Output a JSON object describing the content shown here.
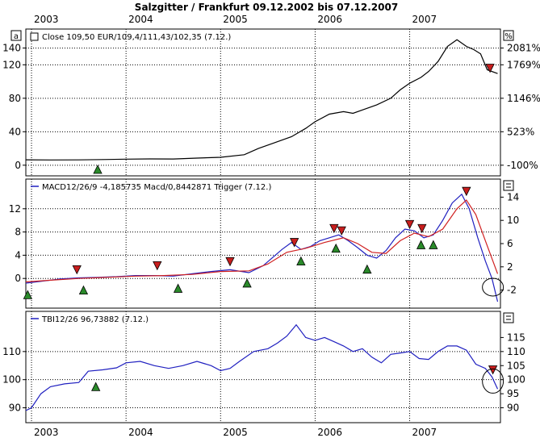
{
  "chart_data": {
    "title": "Salzgitter / Frankfurt 09.12.2002 bis 07.12.2007",
    "x_axis": {
      "year_labels": [
        "2003",
        "2004",
        "2005",
        "2006",
        "2007"
      ]
    },
    "panels": [
      {
        "type": "line",
        "corner_label": "a",
        "corner_right_label": "%",
        "legend": "Close 109,50 EUR/109,4/111,43/102,35 (7.12.)",
        "ylim": [
          -5,
          155
        ],
        "y_ticks_left": [
          "140",
          "120",
          "80",
          "40",
          "0"
        ],
        "y_ticks_left_values": [
          140,
          120,
          80,
          40,
          0
        ],
        "y_ticks_right": [
          "2081%",
          "1769%",
          "1146%",
          "523%",
          "-100%"
        ],
        "y_ticks_right_values": [
          140,
          120,
          80,
          40,
          0
        ],
        "series": [
          {
            "name": "Close",
            "color": "#000000",
            "points": [
              [
                2002.94,
                6.5
              ],
              [
                2003.2,
                6.3
              ],
              [
                2003.5,
                6.4
              ],
              [
                2003.75,
                6.8
              ],
              [
                2004.0,
                7.2
              ],
              [
                2004.25,
                7.5
              ],
              [
                2004.5,
                7.4
              ],
              [
                2004.75,
                8.5
              ],
              [
                2005.0,
                9.5
              ],
              [
                2005.25,
                12.5
              ],
              [
                2005.4,
                20
              ],
              [
                2005.55,
                26
              ],
              [
                2005.75,
                34
              ],
              [
                2005.9,
                44
              ],
              [
                2006.0,
                52
              ],
              [
                2006.15,
                61
              ],
              [
                2006.3,
                64
              ],
              [
                2006.4,
                62
              ],
              [
                2006.5,
                66
              ],
              [
                2006.65,
                72
              ],
              [
                2006.8,
                80
              ],
              [
                2006.9,
                90
              ],
              [
                2007.0,
                98
              ],
              [
                2007.12,
                105
              ],
              [
                2007.2,
                112
              ],
              [
                2007.3,
                124
              ],
              [
                2007.4,
                142
              ],
              [
                2007.5,
                150
              ],
              [
                2007.6,
                142
              ],
              [
                2007.68,
                138
              ],
              [
                2007.75,
                133
              ],
              [
                2007.82,
                114
              ],
              [
                2007.93,
                109.5
              ]
            ]
          }
        ],
        "buy_markers": [
          [
            2003.7,
            -5
          ]
        ],
        "sell_markers": [
          [
            2007.85,
            116
          ]
        ]
      },
      {
        "type": "line",
        "legend": "MACD12/26/9 -4,185735 Macd/0,8442871 Trigger (7.12.)",
        "ylim": [
          -4,
          16
        ],
        "y_ticks_left": [
          "12",
          "8",
          "4",
          "0"
        ],
        "y_ticks_left_values": [
          12,
          8,
          4,
          0
        ],
        "y_ticks_right": [
          "14",
          "10",
          "6",
          "2",
          "-2"
        ],
        "y_ticks_right_values": [
          14,
          10,
          6,
          2,
          -2
        ],
        "series": [
          {
            "name": "Macd",
            "color": "#2020c0",
            "points": [
              [
                2002.94,
                -0.8
              ],
              [
                2003.1,
                -0.5
              ],
              [
                2003.3,
                -0.1
              ],
              [
                2003.5,
                0.1
              ],
              [
                2003.7,
                0.2
              ],
              [
                2003.9,
                0.3
              ],
              [
                2004.1,
                0.5
              ],
              [
                2004.3,
                0.5
              ],
              [
                2004.5,
                0.4
              ],
              [
                2004.7,
                0.8
              ],
              [
                2004.9,
                1.2
              ],
              [
                2005.1,
                1.5
              ],
              [
                2005.3,
                1.0
              ],
              [
                2005.45,
                2.2
              ],
              [
                2005.55,
                3.6
              ],
              [
                2005.65,
                5.0
              ],
              [
                2005.75,
                6.2
              ],
              [
                2005.85,
                5.0
              ],
              [
                2005.95,
                5.5
              ],
              [
                2006.05,
                6.5
              ],
              [
                2006.15,
                7.0
              ],
              [
                2006.25,
                7.5
              ],
              [
                2006.35,
                6.5
              ],
              [
                2006.45,
                5.3
              ],
              [
                2006.55,
                4.0
              ],
              [
                2006.65,
                3.5
              ],
              [
                2006.75,
                4.8
              ],
              [
                2006.85,
                7.0
              ],
              [
                2006.95,
                8.5
              ],
              [
                2007.05,
                8.2
              ],
              [
                2007.15,
                7.0
              ],
              [
                2007.25,
                7.5
              ],
              [
                2007.35,
                10.0
              ],
              [
                2007.45,
                13.0
              ],
              [
                2007.55,
                14.5
              ],
              [
                2007.63,
                12.0
              ],
              [
                2007.72,
                7.0
              ],
              [
                2007.8,
                3.0
              ],
              [
                2007.87,
                0.0
              ],
              [
                2007.93,
                -4.0
              ]
            ]
          },
          {
            "name": "Trigger",
            "color": "#d02020",
            "points": [
              [
                2002.94,
                -0.6
              ],
              [
                2003.2,
                -0.3
              ],
              [
                2003.5,
                0.0
              ],
              [
                2003.8,
                0.2
              ],
              [
                2004.1,
                0.4
              ],
              [
                2004.4,
                0.5
              ],
              [
                2004.7,
                0.7
              ],
              [
                2005.0,
                1.2
              ],
              [
                2005.3,
                1.3
              ],
              [
                2005.5,
                2.5
              ],
              [
                2005.7,
                4.5
              ],
              [
                2005.9,
                5.2
              ],
              [
                2006.1,
                6.2
              ],
              [
                2006.3,
                7.0
              ],
              [
                2006.45,
                6.0
              ],
              [
                2006.6,
                4.5
              ],
              [
                2006.75,
                4.3
              ],
              [
                2006.9,
                6.5
              ],
              [
                2007.05,
                7.8
              ],
              [
                2007.2,
                7.2
              ],
              [
                2007.35,
                8.5
              ],
              [
                2007.5,
                12.0
              ],
              [
                2007.6,
                13.5
              ],
              [
                2007.7,
                11.0
              ],
              [
                2007.8,
                6.5
              ],
              [
                2007.93,
                0.8
              ]
            ]
          }
        ],
        "buy_markers": [
          [
            2002.96,
            -2.8
          ],
          [
            2003.55,
            -2.0
          ],
          [
            2004.55,
            -1.7
          ],
          [
            2005.28,
            -0.8
          ],
          [
            2005.85,
            3.0
          ],
          [
            2006.22,
            5.2
          ],
          [
            2006.55,
            1.6
          ],
          [
            2007.12,
            5.8
          ],
          [
            2007.25,
            5.8
          ]
        ],
        "sell_markers": [
          [
            2003.48,
            1.5
          ],
          [
            2004.33,
            2.2
          ],
          [
            2005.1,
            2.9
          ],
          [
            2005.78,
            6.2
          ],
          [
            2006.2,
            8.6
          ],
          [
            2006.28,
            8.2
          ],
          [
            2007.0,
            9.3
          ],
          [
            2007.13,
            8.6
          ],
          [
            2007.6,
            15.0
          ]
        ]
      },
      {
        "type": "line",
        "legend": "TBI12/26 96,73882 (7.12.)",
        "ylim": [
          87,
          122
        ],
        "y_ticks_left": [
          "110",
          "100",
          "90"
        ],
        "y_ticks_left_values": [
          110,
          100,
          90
        ],
        "y_ticks_right": [
          "115",
          "110",
          "105",
          "100",
          "95",
          "90"
        ],
        "y_ticks_right_values": [
          115,
          110,
          105,
          100,
          95,
          90
        ],
        "series": [
          {
            "name": "TBI",
            "color": "#2020c0",
            "points": [
              [
                2002.94,
                89
              ],
              [
                2003.0,
                90
              ],
              [
                2003.1,
                95
              ],
              [
                2003.2,
                97.5
              ],
              [
                2003.35,
                98.5
              ],
              [
                2003.5,
                99
              ],
              [
                2003.6,
                103
              ],
              [
                2003.75,
                103.5
              ],
              [
                2003.9,
                104.2
              ],
              [
                2004.0,
                106
              ],
              [
                2004.15,
                106.5
              ],
              [
                2004.3,
                105
              ],
              [
                2004.45,
                104
              ],
              [
                2004.6,
                105
              ],
              [
                2004.75,
                106.5
              ],
              [
                2004.9,
                105
              ],
              [
                2005.0,
                103.2
              ],
              [
                2005.1,
                104
              ],
              [
                2005.2,
                106.5
              ],
              [
                2005.35,
                110
              ],
              [
                2005.5,
                111
              ],
              [
                2005.6,
                113
              ],
              [
                2005.7,
                115.5
              ],
              [
                2005.8,
                119.5
              ],
              [
                2005.9,
                115
              ],
              [
                2006.0,
                114
              ],
              [
                2006.1,
                115
              ],
              [
                2006.2,
                113.5
              ],
              [
                2006.3,
                112
              ],
              [
                2006.4,
                110
              ],
              [
                2006.5,
                111
              ],
              [
                2006.6,
                108
              ],
              [
                2006.7,
                106
              ],
              [
                2006.8,
                109
              ],
              [
                2006.9,
                109.5
              ],
              [
                2007.0,
                110
              ],
              [
                2007.1,
                107.5
              ],
              [
                2007.2,
                107.2
              ],
              [
                2007.3,
                110
              ],
              [
                2007.4,
                112
              ],
              [
                2007.5,
                112
              ],
              [
                2007.6,
                110.5
              ],
              [
                2007.7,
                105.5
              ],
              [
                2007.8,
                104
              ],
              [
                2007.87,
                101
              ],
              [
                2007.93,
                96.7
              ]
            ]
          }
        ],
        "buy_markers": [
          [
            2003.68,
            97.5
          ]
        ],
        "sell_markers": [
          [
            2007.88,
            103.5
          ]
        ]
      }
    ]
  }
}
